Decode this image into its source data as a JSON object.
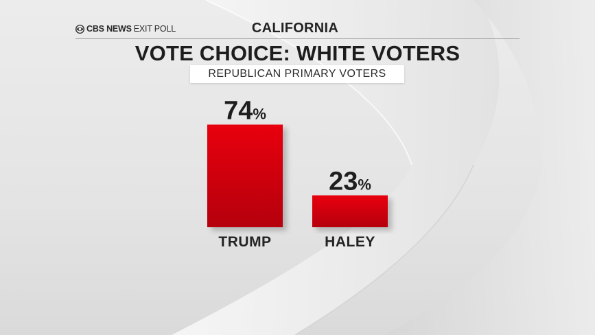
{
  "brand": {
    "name": "CBS NEWS",
    "suffix": "EXIT POLL",
    "logo": "cbs-eye-icon"
  },
  "header": {
    "region": "CALIFORNIA",
    "title": "VOTE CHOICE: WHITE VOTERS",
    "subtitle": "REPUBLICAN PRIMARY VOTERS"
  },
  "colors": {
    "bar_top": "#e8000c",
    "bar_bottom": "#b5000e",
    "text": "#1e1e1e"
  },
  "chart_data": {
    "type": "bar",
    "title": "VOTE CHOICE: WHITE VOTERS",
    "subtitle": "REPUBLICAN PRIMARY VOTERS",
    "categories": [
      "TRUMP",
      "HALEY"
    ],
    "values": [
      74,
      23
    ],
    "value_suffix": "%",
    "ylim": [
      0,
      100
    ],
    "grid": false,
    "legend": "none"
  }
}
